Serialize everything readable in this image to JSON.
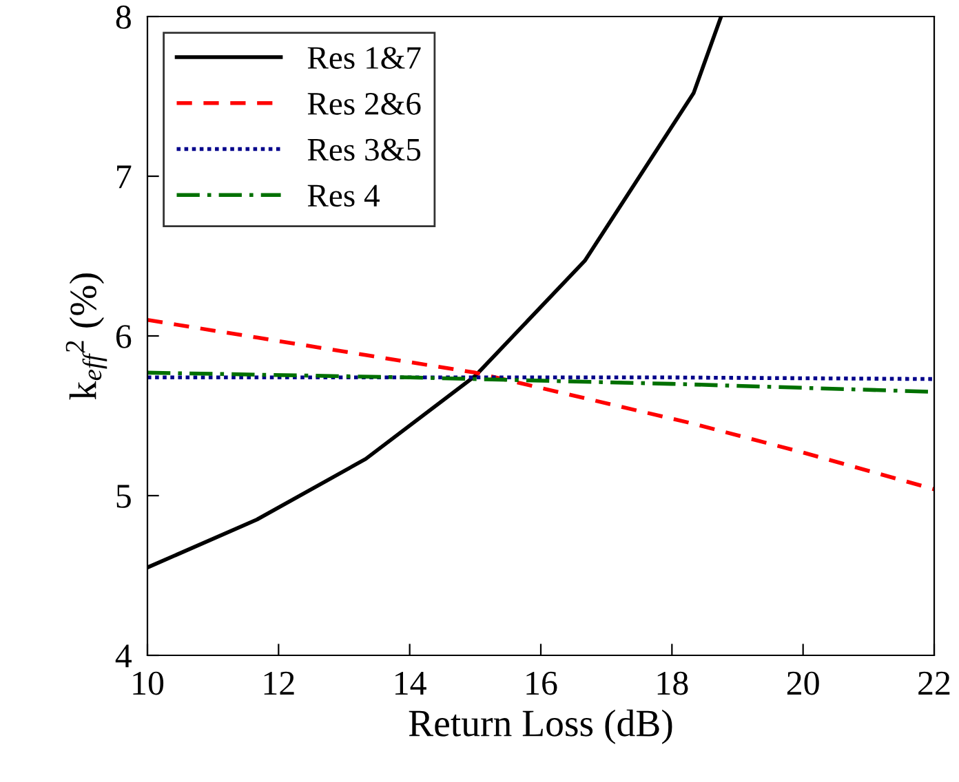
{
  "chart_data": {
    "type": "line",
    "xlabel": "Return Loss (dB)",
    "ylabel": "k$_{eff}$$^{2}$ (%)",
    "xlim": [
      10,
      22
    ],
    "ylim": [
      4,
      8
    ],
    "xticks": [
      10,
      12,
      14,
      16,
      18,
      20,
      22
    ],
    "yticks": [
      4,
      5,
      6,
      7,
      8
    ],
    "grid": false,
    "legend": "top left",
    "series": [
      {
        "name": "Res 1&7",
        "color": "#000000",
        "line_style": "solid",
        "x": [
          10,
          11.67,
          13.33,
          15,
          16.67,
          18.33,
          18.75
        ],
        "values": [
          4.55,
          4.85,
          5.23,
          5.75,
          6.47,
          7.52,
          8.0
        ]
      },
      {
        "name": "Res 2&6",
        "color": "#ff0000",
        "line_style": "dashed",
        "x": [
          10,
          11.67,
          13.33,
          15,
          16.67,
          18.33,
          20,
          22
        ],
        "values": [
          6.1,
          5.99,
          5.88,
          5.77,
          5.61,
          5.45,
          5.27,
          5.04
        ]
      },
      {
        "name": "Res 3&5",
        "color": "#00008b",
        "line_style": "dotted",
        "x": [
          10,
          14,
          18,
          22
        ],
        "values": [
          5.74,
          5.74,
          5.74,
          5.73
        ]
      },
      {
        "name": "Res 4",
        "color": "#007000",
        "line_style": "dashdot",
        "x": [
          10,
          14,
          18,
          22
        ],
        "values": [
          5.77,
          5.74,
          5.7,
          5.65
        ]
      }
    ]
  }
}
